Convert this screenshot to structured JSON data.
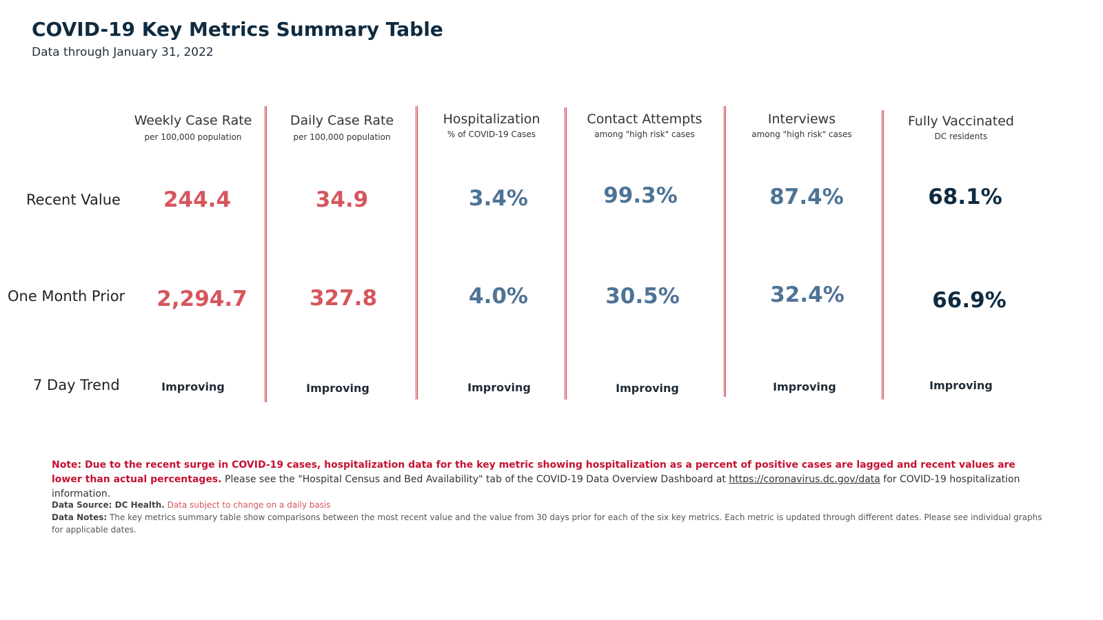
{
  "header": {
    "title": "COVID-19 Key Metrics Summary Table",
    "subtitle": "Data through January 31, 2022"
  },
  "row_labels": {
    "recent": "Recent Value",
    "prior": "One Month Prior",
    "trend": "7 Day Trend"
  },
  "metrics": [
    {
      "name": "Weekly Case Rate",
      "sub": "per 100,000 population",
      "recent": "244.4",
      "prior": "2,294.7",
      "trend": "Improving",
      "color": "#d6565c"
    },
    {
      "name": "Daily Case Rate",
      "sub": "per 100,000 population",
      "recent": "34.9",
      "prior": "327.8",
      "trend": "Improving",
      "color": "#d6565c"
    },
    {
      "name": "Hospitalization",
      "sub": "% of COVID-19 Cases",
      "recent": "3.4%",
      "prior": "4.0%",
      "trend": "Improving",
      "color": "#4e7396"
    },
    {
      "name": "Contact Attempts",
      "sub": "among \"high risk\" cases",
      "recent": "99.3%",
      "prior": "30.5%",
      "trend": "Improving",
      "color": "#4e7396"
    },
    {
      "name": "Interviews",
      "sub": "among \"high risk\" cases",
      "recent": "87.4%",
      "prior": "32.4%",
      "trend": "Improving",
      "color": "#4e7396"
    },
    {
      "name": "Fully Vaccinated",
      "sub": "DC residents",
      "recent": "68.1%",
      "prior": "66.9%",
      "trend": "Improving",
      "color": "#0f2b40"
    }
  ],
  "note": {
    "bold": "Note: Due to the recent surge in COVID-19 cases, hospitalization data for the key metric showing hospitalization as a percent of positive cases are lagged and recent values are lower than actual percentages.",
    "text_before_link": "Please see the \"Hospital Census and Bed Availability\" tab of the COVID-19 Data Overview Dashboard at",
    "link": "https://coronavirus.dc.gov/data",
    "text_after_link": "for COVID-19 hospitalization information."
  },
  "source": {
    "label": "Data Source: DC Health.",
    "caveat": "Data subject to change on a daily basis",
    "notes_label": "Data Notes:",
    "notes_text": "The key metrics summary table show comparisons between the most recent value and the value from 30 days prior for each of the six key metrics. Each metric is updated through different dates. Please see individual graphs for applicable dates."
  }
}
